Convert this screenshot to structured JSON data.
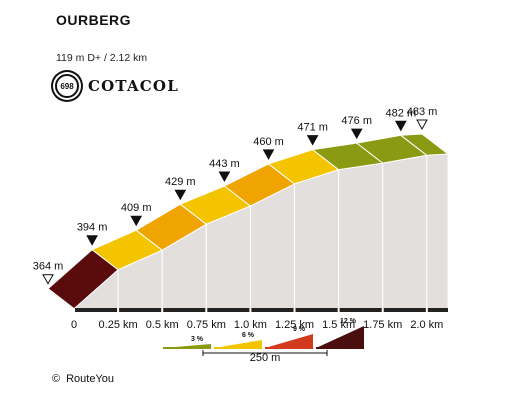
{
  "title": "OURBERG",
  "subtitle": "119 m D+ / 2.12 km",
  "logo": {
    "number": "698",
    "text": "COTACOL"
  },
  "copyright": {
    "symbol": "©",
    "text": "RouteYou"
  },
  "chart_data": {
    "type": "area",
    "title": "OURBERG",
    "subtitle": "119 m D+ / 2.12 km",
    "x_unit": "km",
    "y_unit": "m",
    "x_tick_labels": [
      "0",
      "0.25 km",
      "0.5 km",
      "0.75 km",
      "1.0 km",
      "1.25 km",
      "1.5 km",
      "1.75 km",
      "2.0 km"
    ],
    "points": [
      {
        "x": 0.0,
        "y": 364,
        "label": "364 m",
        "marker": "open"
      },
      {
        "x": 0.25,
        "y": 394,
        "label": "394 m",
        "marker": "filled"
      },
      {
        "x": 0.5,
        "y": 409,
        "label": "409 m",
        "marker": "filled"
      },
      {
        "x": 0.75,
        "y": 429,
        "label": "429 m",
        "marker": "filled"
      },
      {
        "x": 1.0,
        "y": 443,
        "label": "443 m",
        "marker": "filled"
      },
      {
        "x": 1.25,
        "y": 460,
        "label": "460 m",
        "marker": "filled"
      },
      {
        "x": 1.5,
        "y": 471,
        "label": "471 m",
        "marker": "filled"
      },
      {
        "x": 1.75,
        "y": 476,
        "label": "476 m",
        "marker": "filled"
      },
      {
        "x": 2.0,
        "y": 482,
        "label": "482 m",
        "marker": "filled"
      },
      {
        "x": 2.12,
        "y": 483,
        "label": "483 m",
        "marker": "open"
      }
    ],
    "segment_colors": [
      "#5a0b0b",
      "#f5c400",
      "#f0a400",
      "#f5c400",
      "#f0a400",
      "#f5c400",
      "#8a9a12",
      "#8a9a12",
      "#8a9a12"
    ],
    "side_color": "#e2dfdc",
    "base_color": "#bdbdbd",
    "legend": {
      "items": [
        {
          "label": "3 %",
          "color": "#8a9a12"
        },
        {
          "label": "6 %",
          "color": "#f5c400"
        },
        {
          "label": "9 %",
          "color": "#d23a1e"
        },
        {
          "label": "12 %",
          "color": "#4a0e0e"
        }
      ],
      "scale_label": "250 m"
    }
  }
}
